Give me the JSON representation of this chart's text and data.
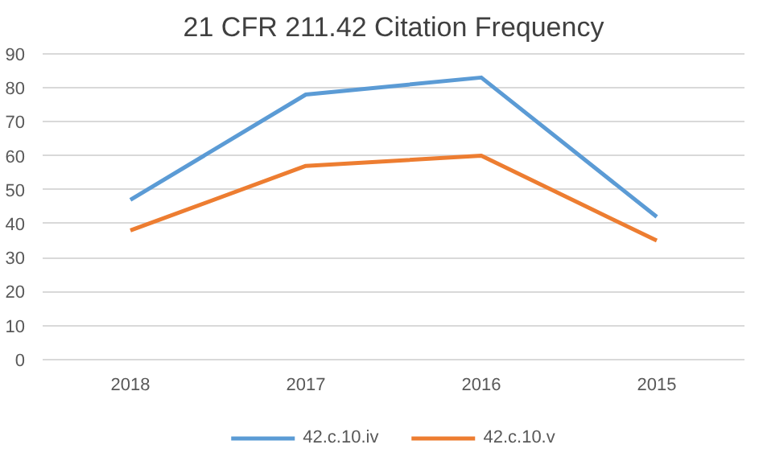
{
  "chart_data": {
    "type": "line",
    "title": "21 CFR 211.42 Citation Frequency",
    "categories": [
      "2018",
      "2017",
      "2016",
      "2015"
    ],
    "series": [
      {
        "name": "42.c.10.iv",
        "color": "#5b9bd5",
        "values": [
          47,
          78,
          83,
          42
        ]
      },
      {
        "name": "42.c.10.v",
        "color": "#ed7d31",
        "values": [
          38,
          57,
          60,
          35
        ]
      }
    ],
    "ylim": [
      0,
      90
    ],
    "yticks": [
      0,
      10,
      20,
      30,
      40,
      50,
      60,
      70,
      80,
      90
    ],
    "grid": "y",
    "legend": "bottom",
    "marker": "none",
    "line_style": "solid"
  }
}
